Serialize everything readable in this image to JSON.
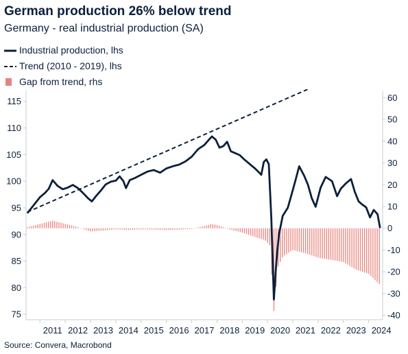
{
  "title": "German production 26% below trend",
  "subtitle": "Germany - real industrial production (SA)",
  "legend": [
    {
      "label": "Industrial production, lhs",
      "style": "solid",
      "color": "#0b1f3a"
    },
    {
      "label": "Trend (2010 - 2019), lhs",
      "style": "dashed",
      "color": "#0b1f3a"
    },
    {
      "label": "Gap from trend, rhs",
      "style": "bar",
      "color": "#e8837c"
    }
  ],
  "source": "Source: Convera, Macrobond",
  "chart_data": {
    "type": "line",
    "x_ticks": [
      "2011",
      "2012",
      "2013",
      "2014",
      "2015",
      "2016",
      "2017",
      "2018",
      "2019",
      "2020",
      "2021",
      "2022",
      "2023",
      "2024"
    ],
    "y_left_ticks": [
      75,
      80,
      85,
      90,
      95,
      100,
      105,
      110,
      115
    ],
    "y_right_ticks": [
      -40,
      -30,
      -20,
      -10,
      0,
      10,
      20,
      30,
      40,
      50,
      60
    ],
    "ylim_left": [
      74,
      116.5
    ],
    "ylim_right": [
      -42,
      62
    ],
    "xlim": [
      2010.45,
      2024.55
    ],
    "grid": false,
    "legend_position": "top-left",
    "series": [
      {
        "name": "Industrial production, lhs",
        "axis": "left",
        "color": "#0b1f3a",
        "points": [
          [
            2010.5,
            94.0
          ],
          [
            2010.75,
            95.5
          ],
          [
            2011.0,
            97.0
          ],
          [
            2011.2,
            97.8
          ],
          [
            2011.35,
            98.6
          ],
          [
            2011.5,
            100.2
          ],
          [
            2011.7,
            99.1
          ],
          [
            2011.9,
            98.5
          ],
          [
            2012.1,
            98.8
          ],
          [
            2012.3,
            99.3
          ],
          [
            2012.5,
            98.7
          ],
          [
            2012.7,
            97.8
          ],
          [
            2012.9,
            96.8
          ],
          [
            2013.05,
            96.2
          ],
          [
            2013.2,
            97.1
          ],
          [
            2013.4,
            98.2
          ],
          [
            2013.6,
            99.4
          ],
          [
            2013.8,
            99.9
          ],
          [
            2014.0,
            100.1
          ],
          [
            2014.15,
            100.9
          ],
          [
            2014.3,
            100.0
          ],
          [
            2014.4,
            98.7
          ],
          [
            2014.55,
            100.2
          ],
          [
            2014.75,
            100.6
          ],
          [
            2015.0,
            101.2
          ],
          [
            2015.25,
            101.8
          ],
          [
            2015.5,
            102.1
          ],
          [
            2015.75,
            101.6
          ],
          [
            2016.0,
            102.4
          ],
          [
            2016.25,
            102.8
          ],
          [
            2016.5,
            103.1
          ],
          [
            2016.75,
            103.7
          ],
          [
            2017.0,
            104.6
          ],
          [
            2017.25,
            106.0
          ],
          [
            2017.5,
            106.8
          ],
          [
            2017.7,
            107.9
          ],
          [
            2017.8,
            108.4
          ],
          [
            2017.95,
            107.8
          ],
          [
            2018.1,
            106.3
          ],
          [
            2018.25,
            106.6
          ],
          [
            2018.4,
            107.4
          ],
          [
            2018.55,
            105.6
          ],
          [
            2018.75,
            105.2
          ],
          [
            2018.9,
            104.9
          ],
          [
            2019.1,
            104.0
          ],
          [
            2019.3,
            103.2
          ],
          [
            2019.5,
            102.4
          ],
          [
            2019.65,
            101.7
          ],
          [
            2019.75,
            101.2
          ],
          [
            2019.85,
            103.6
          ],
          [
            2019.95,
            104.1
          ],
          [
            2020.05,
            103.2
          ],
          [
            2020.15,
            93.0
          ],
          [
            2020.25,
            77.8
          ],
          [
            2020.35,
            85.0
          ],
          [
            2020.45,
            90.0
          ],
          [
            2020.6,
            93.5
          ],
          [
            2020.8,
            95.0
          ],
          [
            2020.95,
            97.5
          ],
          [
            2021.1,
            100.1
          ],
          [
            2021.25,
            102.8
          ],
          [
            2021.45,
            101.0
          ],
          [
            2021.6,
            99.3
          ],
          [
            2021.75,
            96.8
          ],
          [
            2021.9,
            95.2
          ],
          [
            2022.1,
            98.8
          ],
          [
            2022.3,
            100.8
          ],
          [
            2022.55,
            100.0
          ],
          [
            2022.75,
            97.2
          ],
          [
            2022.9,
            98.6
          ],
          [
            2023.1,
            99.6
          ],
          [
            2023.3,
            100.4
          ],
          [
            2023.45,
            98.0
          ],
          [
            2023.6,
            96.2
          ],
          [
            2023.75,
            95.6
          ],
          [
            2023.9,
            95.1
          ],
          [
            2024.05,
            93.2
          ],
          [
            2024.2,
            94.6
          ],
          [
            2024.35,
            93.8
          ],
          [
            2024.45,
            91.2
          ]
        ]
      },
      {
        "name": "Trend (2010 - 2019), lhs",
        "axis": "left",
        "color": "#0b1f3a",
        "dashed": true,
        "points": [
          [
            2010.5,
            94.2
          ],
          [
            2024.45,
            123.2
          ]
        ]
      },
      {
        "name": "Gap from trend, rhs",
        "axis": "right",
        "type": "bar",
        "color": "#e8837c",
        "points": [
          [
            2010.5,
            0.5
          ],
          [
            2011.0,
            2.0
          ],
          [
            2011.5,
            3.5
          ],
          [
            2012.0,
            2.0
          ],
          [
            2012.5,
            0.5
          ],
          [
            2013.0,
            -1.5
          ],
          [
            2013.5,
            -1.0
          ],
          [
            2014.0,
            -0.5
          ],
          [
            2014.5,
            -0.8
          ],
          [
            2015.0,
            -0.5
          ],
          [
            2015.5,
            -0.6
          ],
          [
            2016.0,
            -0.8
          ],
          [
            2016.5,
            -0.6
          ],
          [
            2017.0,
            -0.3
          ],
          [
            2017.5,
            1.0
          ],
          [
            2017.8,
            2.0
          ],
          [
            2018.0,
            1.5
          ],
          [
            2018.5,
            -0.5
          ],
          [
            2019.0,
            -2.0
          ],
          [
            2019.5,
            -4.0
          ],
          [
            2019.9,
            -5.5
          ],
          [
            2020.1,
            -8.0
          ],
          [
            2020.25,
            -38.0
          ],
          [
            2020.4,
            -18.0
          ],
          [
            2020.6,
            -13.0
          ],
          [
            2021.0,
            -10.0
          ],
          [
            2021.5,
            -11.5
          ],
          [
            2022.0,
            -13.5
          ],
          [
            2022.5,
            -14.5
          ],
          [
            2023.0,
            -15.5
          ],
          [
            2023.5,
            -19.0
          ],
          [
            2024.0,
            -21.0
          ],
          [
            2024.45,
            -26.0
          ]
        ]
      }
    ]
  }
}
